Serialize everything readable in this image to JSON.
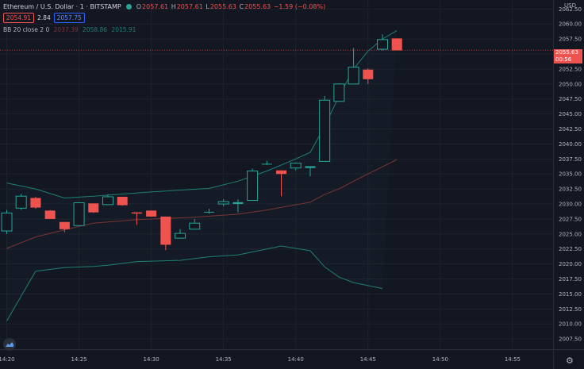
{
  "header": {
    "symbol": "Ethereum / U.S. Dollar · 1 · BITSTAMP",
    "ohlc": {
      "open_label": "O",
      "open": "2057.61",
      "high_label": "H",
      "high": "2057.61",
      "low_label": "L",
      "low": "2055.63",
      "close_label": "C",
      "close": "2055.63",
      "change": "−1.59 (−0.08%)"
    },
    "sell_price": "2054.91",
    "spread": "2.84",
    "buy_price": "2057.75",
    "indicator": {
      "name": "BB 20 close 2 0",
      "basis": "2037.39",
      "upper": "2058.86",
      "lower": "2015.91"
    }
  },
  "price_scale": {
    "currency": "USD",
    "last_price": "2055.63",
    "countdown": "00:56"
  },
  "colors": {
    "background": "#131722",
    "up": "#26a69a",
    "down": "#ef5350",
    "grid": "#1e222d",
    "band": "#1f7f74",
    "basis": "#7a3535"
  },
  "chart_data": {
    "type": "candlestick",
    "y_ticks": [
      "2062.50",
      "2060.00",
      "2057.50",
      "2055.00",
      "2052.50",
      "2050.00",
      "2047.50",
      "2045.00",
      "2042.50",
      "2040.00",
      "2037.50",
      "2035.00",
      "2032.50",
      "2030.00",
      "2027.50",
      "2025.00",
      "2022.50",
      "2020.00",
      "2017.50",
      "2015.00",
      "2012.50",
      "2010.00",
      "2007.50"
    ],
    "ylim": [
      2005.8,
      2064.0
    ],
    "x_ticks": [
      "14:20",
      "14:25",
      "14:30",
      "14:35",
      "14:40",
      "14:45",
      "14:50",
      "14:55"
    ],
    "x_tick_minutes": [
      0,
      5,
      10,
      15,
      20,
      25,
      30,
      35
    ],
    "xlim_minutes": [
      0,
      36
    ],
    "candles": [
      {
        "t": 0,
        "o": 2025.5,
        "h": 2029.0,
        "l": 2025.0,
        "c": 2028.5
      },
      {
        "t": 1,
        "o": 2029.3,
        "h": 2031.7,
        "l": 2029.0,
        "c": 2031.3
      },
      {
        "t": 2,
        "o": 2031.0,
        "h": 2031.2,
        "l": 2029.2,
        "c": 2029.4
      },
      {
        "t": 3,
        "o": 2028.9,
        "h": 2029.0,
        "l": 2027.5,
        "c": 2027.5
      },
      {
        "t": 4,
        "o": 2027.0,
        "h": 2027.0,
        "l": 2025.3,
        "c": 2025.8
      },
      {
        "t": 5,
        "o": 2026.4,
        "h": 2030.3,
        "l": 2026.4,
        "c": 2030.2
      },
      {
        "t": 6,
        "o": 2030.1,
        "h": 2030.1,
        "l": 2028.5,
        "c": 2028.6
      },
      {
        "t": 7,
        "o": 2029.9,
        "h": 2031.6,
        "l": 2029.9,
        "c": 2031.2
      },
      {
        "t": 8,
        "o": 2031.2,
        "h": 2031.2,
        "l": 2029.7,
        "c": 2029.8
      },
      {
        "t": 9,
        "o": 2028.6,
        "h": 2028.6,
        "l": 2026.5,
        "c": 2028.4
      },
      {
        "t": 10,
        "o": 2028.9,
        "h": 2028.9,
        "l": 2027.9,
        "c": 2027.9
      },
      {
        "t": 11,
        "o": 2027.9,
        "h": 2027.9,
        "l": 2022.3,
        "c": 2023.2
      },
      {
        "t": 12,
        "o": 2024.3,
        "h": 2025.8,
        "l": 2024.3,
        "c": 2025.1
      },
      {
        "t": 13,
        "o": 2025.8,
        "h": 2027.5,
        "l": 2025.7,
        "c": 2026.8
      },
      {
        "t": 14,
        "o": 2028.6,
        "h": 2029.2,
        "l": 2028.4,
        "c": 2028.7
      },
      {
        "t": 15,
        "o": 2030.0,
        "h": 2030.8,
        "l": 2029.6,
        "c": 2030.4
      },
      {
        "t": 16,
        "o": 2030.0,
        "h": 2030.8,
        "l": 2028.6,
        "c": 2030.3
      },
      {
        "t": 17,
        "o": 2030.6,
        "h": 2035.9,
        "l": 2030.6,
        "c": 2035.5
      },
      {
        "t": 18,
        "o": 2036.6,
        "h": 2037.2,
        "l": 2036.5,
        "c": 2036.7
      },
      {
        "t": 19,
        "o": 2035.6,
        "h": 2035.6,
        "l": 2031.3,
        "c": 2035.0
      },
      {
        "t": 20,
        "o": 2036.0,
        "h": 2036.9,
        "l": 2035.6,
        "c": 2036.8
      },
      {
        "t": 21,
        "o": 2036.0,
        "h": 2036.3,
        "l": 2034.6,
        "c": 2036.3
      },
      {
        "t": 22,
        "o": 2037.1,
        "h": 2048.0,
        "l": 2037.1,
        "c": 2047.3
      },
      {
        "t": 23,
        "o": 2047.1,
        "h": 2050.1,
        "l": 2047.1,
        "c": 2050.0
      },
      {
        "t": 24,
        "o": 2050.0,
        "h": 2056.0,
        "l": 2050.0,
        "c": 2052.8
      },
      {
        "t": 25,
        "o": 2052.4,
        "h": 2052.6,
        "l": 2050.0,
        "c": 2050.8
      },
      {
        "t": 26,
        "o": 2055.8,
        "h": 2058.3,
        "l": 2055.6,
        "c": 2057.4
      },
      {
        "t": 27,
        "o": 2057.6,
        "h": 2057.6,
        "l": 2055.6,
        "c": 2055.6
      }
    ],
    "bb_upper": [
      [
        0,
        2033.5
      ],
      [
        2,
        2032.5
      ],
      [
        4,
        2031.0
      ],
      [
        6,
        2031.3
      ],
      [
        10,
        2032.0
      ],
      [
        14,
        2032.6
      ],
      [
        16,
        2033.8
      ],
      [
        18,
        2035.5
      ],
      [
        20,
        2037.5
      ],
      [
        21,
        2038.6
      ],
      [
        22,
        2043.0
      ],
      [
        23,
        2048.0
      ],
      [
        24,
        2052.5
      ],
      [
        25,
        2055.5
      ],
      [
        26,
        2057.5
      ],
      [
        27,
        2058.9
      ]
    ],
    "bb_basis": [
      [
        0,
        2022.6
      ],
      [
        2,
        2024.5
      ],
      [
        4,
        2025.7
      ],
      [
        6,
        2026.8
      ],
      [
        9,
        2027.4
      ],
      [
        13,
        2027.8
      ],
      [
        16,
        2028.3
      ],
      [
        18,
        2029.0
      ],
      [
        21,
        2030.3
      ],
      [
        22,
        2031.6
      ],
      [
        23,
        2032.5
      ],
      [
        24,
        2033.8
      ],
      [
        25,
        2035.0
      ],
      [
        26,
        2036.2
      ],
      [
        27,
        2037.4
      ]
    ],
    "bb_lower": [
      [
        0,
        2010.5
      ],
      [
        2,
        2018.8
      ],
      [
        4,
        2019.4
      ],
      [
        6,
        2019.6
      ],
      [
        7,
        2019.8
      ],
      [
        9,
        2020.4
      ],
      [
        12,
        2020.6
      ],
      [
        14,
        2021.2
      ],
      [
        16,
        2021.5
      ],
      [
        19,
        2023.0
      ],
      [
        21,
        2022.2
      ],
      [
        22,
        2019.5
      ],
      [
        23,
        2017.8
      ],
      [
        24,
        2016.9
      ],
      [
        25,
        2016.4
      ],
      [
        26,
        2015.9
      ]
    ],
    "last_price": 2055.63,
    "bb_fill_range": [
      21,
      27
    ]
  }
}
